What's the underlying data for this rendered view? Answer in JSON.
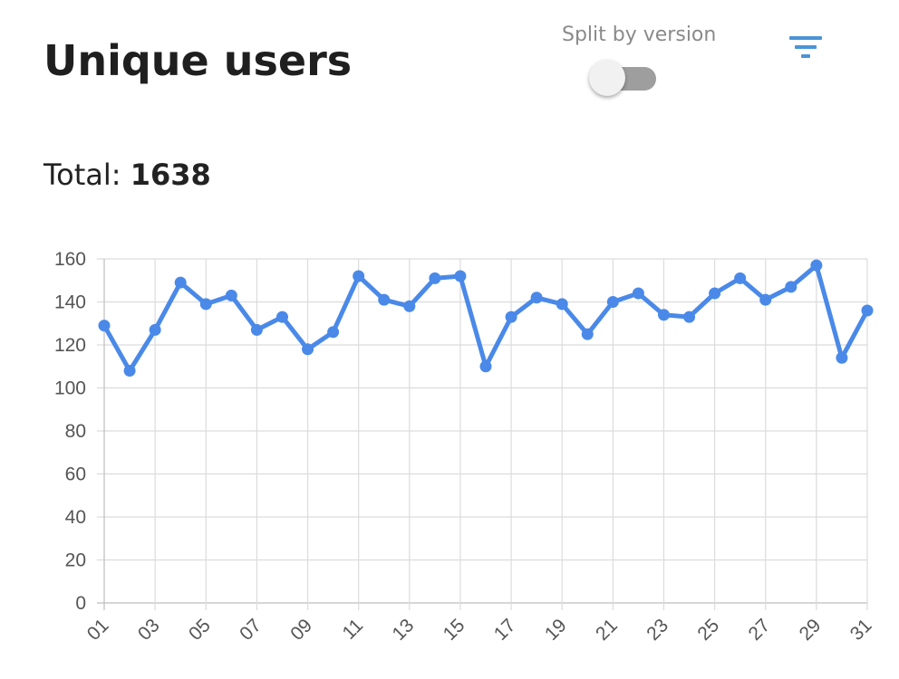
{
  "header": {
    "title": "Unique users",
    "split_label": "Split by version",
    "split_enabled": false
  },
  "summary": {
    "total_label": "Total:",
    "total_value": "1638"
  },
  "icons": {
    "filter": "filter-icon"
  },
  "colors": {
    "line": "#4a89e8",
    "filter_icon": "#4a94d6",
    "grid": "#dcdcdc",
    "toggle_track": "#9e9e9e"
  },
  "chart_data": {
    "type": "line",
    "title": "",
    "xlabel": "",
    "ylabel": "",
    "x": [
      "01",
      "02",
      "03",
      "04",
      "05",
      "06",
      "07",
      "08",
      "09",
      "10",
      "11",
      "12",
      "13",
      "14",
      "15",
      "16",
      "17",
      "18",
      "19",
      "20",
      "21",
      "22",
      "23",
      "24",
      "25",
      "26",
      "27",
      "28",
      "29",
      "30",
      "31"
    ],
    "x_tick_labels": [
      "01",
      "03",
      "05",
      "07",
      "09",
      "11",
      "13",
      "15",
      "17",
      "19",
      "21",
      "23",
      "25",
      "27",
      "29",
      "31"
    ],
    "values": [
      129,
      108,
      127,
      149,
      139,
      143,
      127,
      133,
      118,
      126,
      152,
      141,
      138,
      151,
      152,
      110,
      133,
      142,
      139,
      125,
      140,
      144,
      134,
      133,
      144,
      151,
      141,
      147,
      157,
      114,
      136
    ],
    "ylim": [
      0,
      160
    ],
    "y_ticks": [
      0,
      20,
      40,
      60,
      80,
      100,
      120,
      140,
      160
    ],
    "grid": true,
    "legend": "none"
  }
}
